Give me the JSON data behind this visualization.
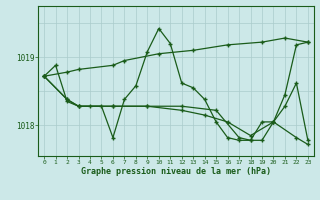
{
  "title": "Graphe pression niveau de la mer (hPa)",
  "bg_color": "#cce8e8",
  "plot_bg_color": "#cce8e8",
  "grid_color": "#aacccc",
  "line_color": "#1a5c1a",
  "xlim": [
    -0.5,
    23.5
  ],
  "ylim": [
    1017.55,
    1019.75
  ],
  "yticks": [
    1018,
    1019
  ],
  "xticks": [
    0,
    1,
    2,
    3,
    4,
    5,
    6,
    7,
    8,
    9,
    10,
    11,
    12,
    13,
    14,
    15,
    16,
    17,
    18,
    19,
    20,
    21,
    22,
    23
  ],
  "series1_x": [
    0,
    1,
    2,
    3,
    4,
    5,
    6,
    7,
    8,
    9,
    10,
    11,
    12,
    13,
    14,
    15,
    16,
    17,
    18,
    19,
    20,
    21,
    22,
    23
  ],
  "series1_y": [
    1018.72,
    1018.88,
    1018.35,
    1018.28,
    1018.28,
    1018.28,
    1017.82,
    1018.38,
    1018.58,
    1019.08,
    1019.42,
    1019.2,
    1018.62,
    1018.55,
    1018.38,
    1018.05,
    1017.82,
    1017.78,
    1017.78,
    1018.05,
    1018.05,
    1018.45,
    1019.18,
    1019.22
  ],
  "series2_x": [
    0,
    2,
    3,
    6,
    7,
    10,
    13,
    16,
    19,
    21,
    23
  ],
  "series2_y": [
    1018.72,
    1018.78,
    1018.82,
    1018.88,
    1018.95,
    1019.05,
    1019.1,
    1019.18,
    1019.22,
    1019.28,
    1019.22
  ],
  "series3_x": [
    0,
    2,
    3,
    6,
    9,
    12,
    15,
    17,
    18,
    19,
    20,
    21,
    22,
    23
  ],
  "series3_y": [
    1018.72,
    1018.38,
    1018.28,
    1018.28,
    1018.28,
    1018.28,
    1018.22,
    1017.82,
    1017.78,
    1017.78,
    1018.05,
    1018.28,
    1018.62,
    1017.78
  ],
  "series4_x": [
    0,
    2,
    3,
    6,
    9,
    12,
    14,
    16,
    18,
    20,
    22,
    23
  ],
  "series4_y": [
    1018.72,
    1018.38,
    1018.28,
    1018.28,
    1018.28,
    1018.22,
    1018.15,
    1018.05,
    1017.85,
    1018.05,
    1017.82,
    1017.72
  ]
}
